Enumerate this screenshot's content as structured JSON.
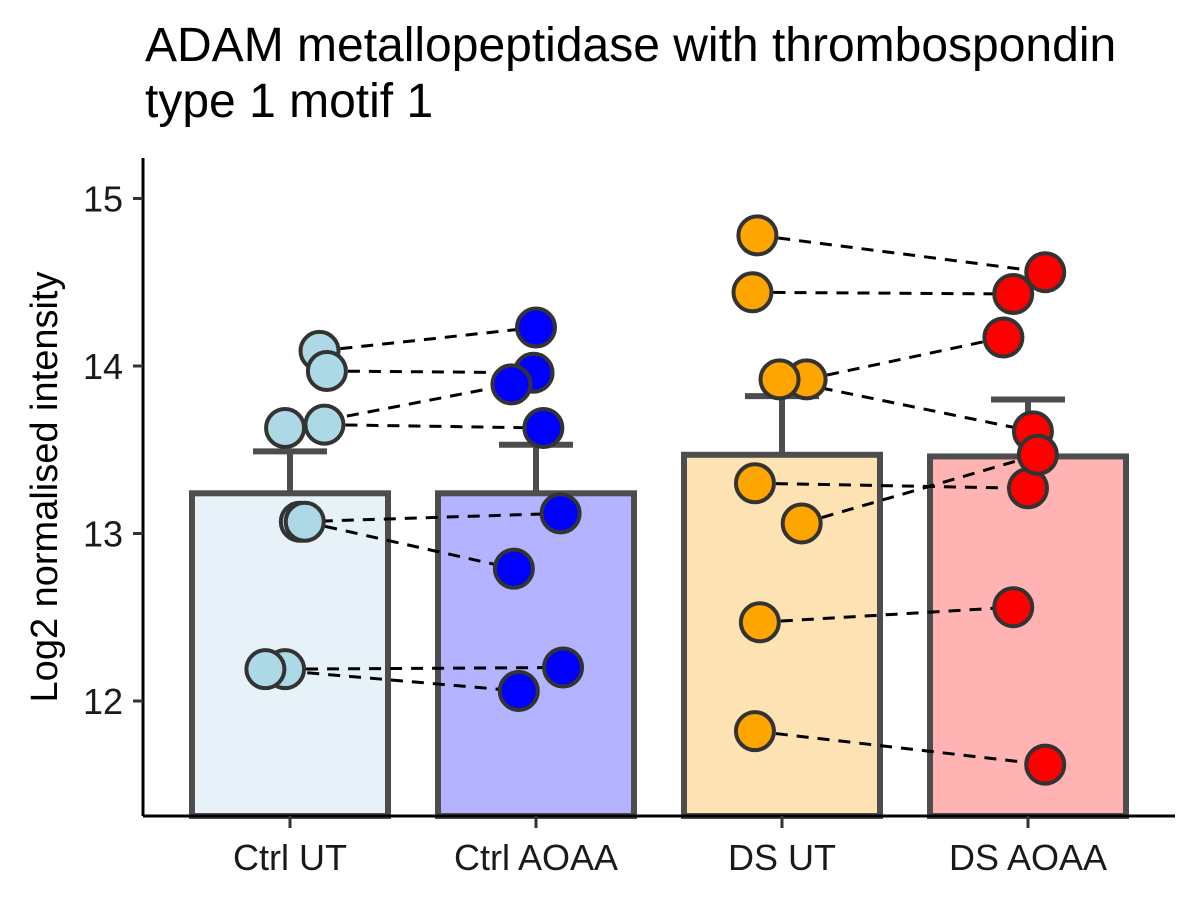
{
  "chart_data": {
    "type": "bar",
    "title": "ADAM metallopeptidase with thrombospondin\ntype 1 motif 1",
    "xlabel": "",
    "ylabel": "Log2 normalised intensity",
    "categories": [
      "Ctrl UT",
      "Ctrl AOAA",
      "DS UT",
      "DS AOAA"
    ],
    "bar_colors": [
      "#e6f1f8",
      "#b3b3ff",
      "#fde3b3",
      "#ffb3b3"
    ],
    "point_colors": [
      "#add8e6",
      "#0000ff",
      "#ffa500",
      "#ff0000"
    ],
    "outline_color": "#4d4d4d",
    "ylim": [
      11.3,
      15.2
    ],
    "yticks": [
      12,
      13,
      14,
      15
    ],
    "grid": false,
    "legend": "none",
    "bars": [
      {
        "category": "Ctrl UT",
        "mean": 13.24,
        "error_upper": 13.49
      },
      {
        "category": "Ctrl AOAA",
        "mean": 13.24,
        "error_upper": 13.53
      },
      {
        "category": "DS UT",
        "mean": 13.47,
        "error_upper": 13.82
      },
      {
        "category": "DS AOAA",
        "mean": 13.46,
        "error_upper": 13.8
      }
    ],
    "paired_points": [
      {
        "ut": {
          "x": 1.12,
          "y": 14.09
        },
        "aoaa": {
          "x": 2.0,
          "y": 14.23
        }
      },
      {
        "ut": {
          "x": 1.15,
          "y": 13.97
        },
        "aoaa": {
          "x": 1.99,
          "y": 13.96
        }
      },
      {
        "ut": {
          "x": 0.98,
          "y": 13.63
        },
        "aoaa": {
          "x": 1.9,
          "y": 13.89
        }
      },
      {
        "ut": {
          "x": 1.14,
          "y": 13.65
        },
        "aoaa": {
          "x": 2.03,
          "y": 13.63
        }
      },
      {
        "ut": {
          "x": 1.04,
          "y": 13.07
        },
        "aoaa": {
          "x": 2.1,
          "y": 13.12
        }
      },
      {
        "ut": {
          "x": 1.06,
          "y": 13.07
        },
        "aoaa": {
          "x": 1.91,
          "y": 12.79
        }
      },
      {
        "ut": {
          "x": 0.98,
          "y": 12.19
        },
        "aoaa": {
          "x": 2.11,
          "y": 12.2
        }
      },
      {
        "ut": {
          "x": 0.9,
          "y": 12.19
        },
        "aoaa": {
          "x": 1.93,
          "y": 12.06
        }
      },
      {
        "ut": {
          "x": 2.9,
          "y": 14.78
        },
        "aoaa": {
          "x": 4.07,
          "y": 14.56
        }
      },
      {
        "ut": {
          "x": 2.88,
          "y": 14.44
        },
        "aoaa": {
          "x": 3.94,
          "y": 14.43
        }
      },
      {
        "ut": {
          "x": 3.1,
          "y": 13.92
        },
        "aoaa": {
          "x": 3.9,
          "y": 14.17
        }
      },
      {
        "ut": {
          "x": 2.99,
          "y": 13.92
        },
        "aoaa": {
          "x": 4.02,
          "y": 13.61
        }
      },
      {
        "ut": {
          "x": 2.89,
          "y": 13.3
        },
        "aoaa": {
          "x": 4.0,
          "y": 13.27
        }
      },
      {
        "ut": {
          "x": 3.08,
          "y": 13.06
        },
        "aoaa": {
          "x": 4.04,
          "y": 13.47
        }
      },
      {
        "ut": {
          "x": 2.91,
          "y": 12.47
        },
        "aoaa": {
          "x": 3.94,
          "y": 12.56
        }
      },
      {
        "ut": {
          "x": 2.89,
          "y": 11.82
        },
        "aoaa": {
          "x": 4.07,
          "y": 11.62
        }
      }
    ]
  }
}
